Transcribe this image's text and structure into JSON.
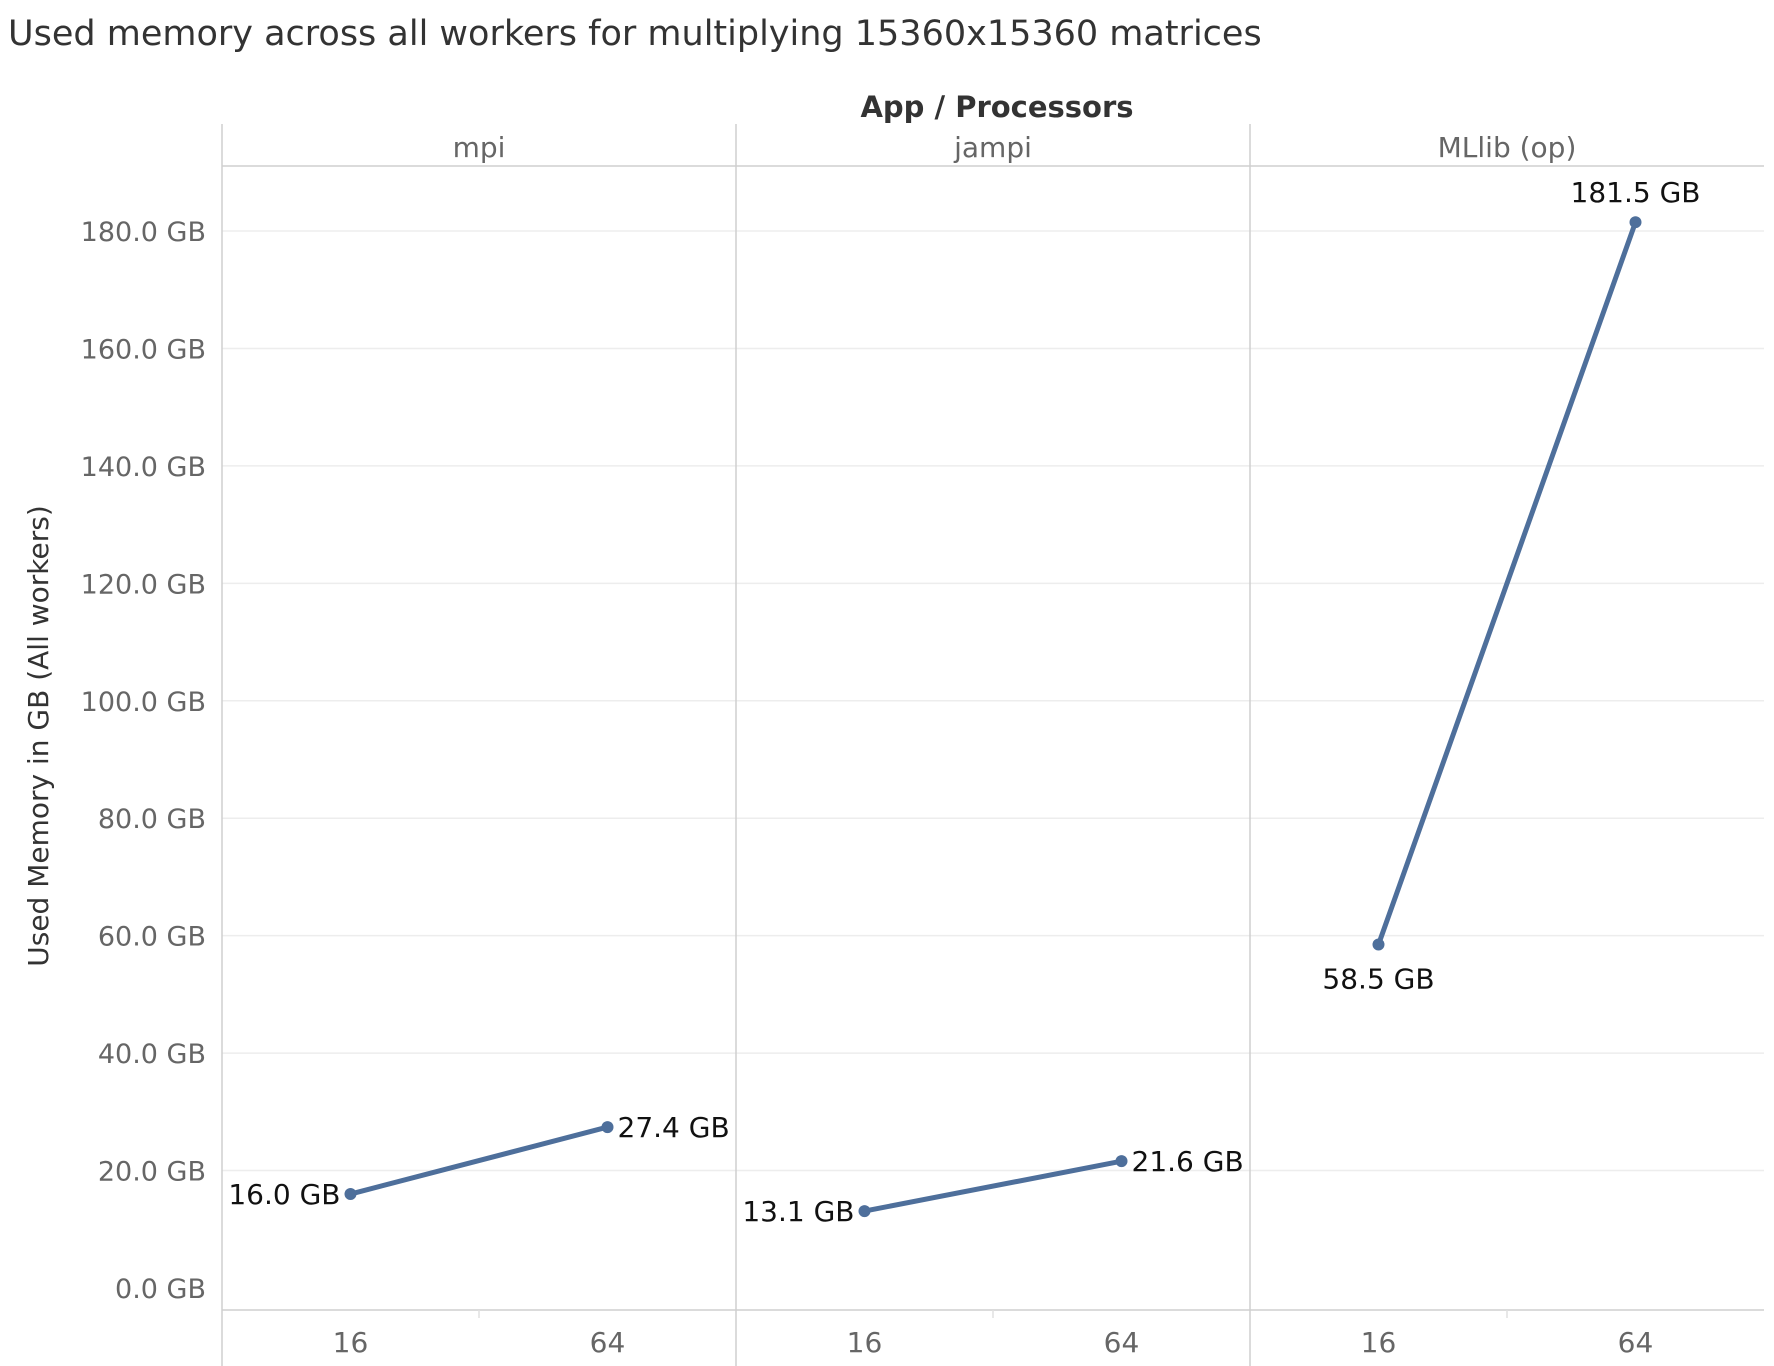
{
  "chart_data": {
    "type": "line",
    "title": "Used memory across all workers for multiplying 15360x15360 matrices",
    "column_header": "App / Processors",
    "ylabel": "Used Memory in GB (All workers)",
    "ylim": [
      0,
      190
    ],
    "yticks": [
      0,
      20,
      40,
      60,
      80,
      100,
      120,
      140,
      160,
      180
    ],
    "ytick_labels": [
      "0.0 GB",
      "20.0 GB",
      "40.0 GB",
      "60.0 GB",
      "80.0 GB",
      "100.0 GB",
      "120.0 GB",
      "140.0 GB",
      "160.0 GB",
      "180.0 GB"
    ],
    "grid": true,
    "legend": "none",
    "series_color": "#4e6f9b",
    "panels": [
      {
        "name": "mpi",
        "categories": [
          "16",
          "64"
        ],
        "values": [
          16.0,
          27.4
        ],
        "value_labels": [
          "16.0 GB",
          "27.4 GB"
        ]
      },
      {
        "name": "jampi",
        "categories": [
          "16",
          "64"
        ],
        "values": [
          13.1,
          21.6
        ],
        "value_labels": [
          "13.1 GB",
          "21.6 GB"
        ]
      },
      {
        "name": "MLlib (op)",
        "categories": [
          "16",
          "64"
        ],
        "values": [
          58.5,
          181.5
        ],
        "value_labels": [
          "58.5 GB",
          "181.5 GB"
        ]
      }
    ]
  }
}
